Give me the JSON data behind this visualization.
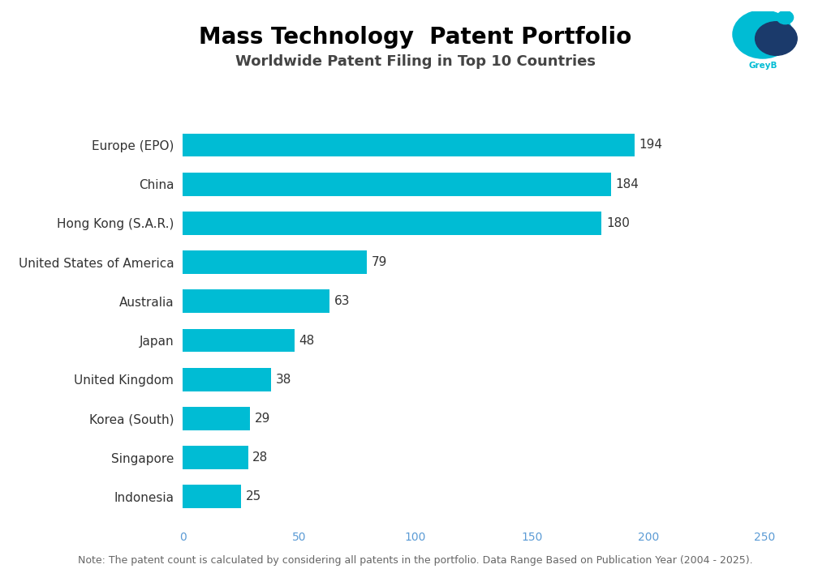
{
  "title": "Mass Technology  Patent Portfolio",
  "subtitle": "Worldwide Patent Filing in Top 10 Countries",
  "note": "Note: The patent count is calculated by considering all patents in the portfolio. Data Range Based on Publication Year (2004 - 2025).",
  "categories": [
    "Europe (EPO)",
    "China",
    "Hong Kong (S.A.R.)",
    "United States of America",
    "Australia",
    "Japan",
    "United Kingdom",
    "Korea (South)",
    "Singapore",
    "Indonesia"
  ],
  "values": [
    194,
    184,
    180,
    79,
    63,
    48,
    38,
    29,
    28,
    25
  ],
  "bar_color": "#00BCD4",
  "background_color": "#ffffff",
  "xlim": [
    0,
    250
  ],
  "xticks": [
    0,
    50,
    100,
    150,
    200,
    250
  ],
  "bar_height": 0.6,
  "title_fontsize": 20,
  "subtitle_fontsize": 13,
  "label_fontsize": 11,
  "value_fontsize": 11,
  "note_fontsize": 9,
  "tick_fontsize": 10,
  "title_color": "#000000",
  "subtitle_color": "#444444",
  "label_color": "#333333",
  "value_color": "#333333",
  "tick_color": "#5b9bd5",
  "note_color": "#666666",
  "greyb_text_color": "#00BCD4"
}
